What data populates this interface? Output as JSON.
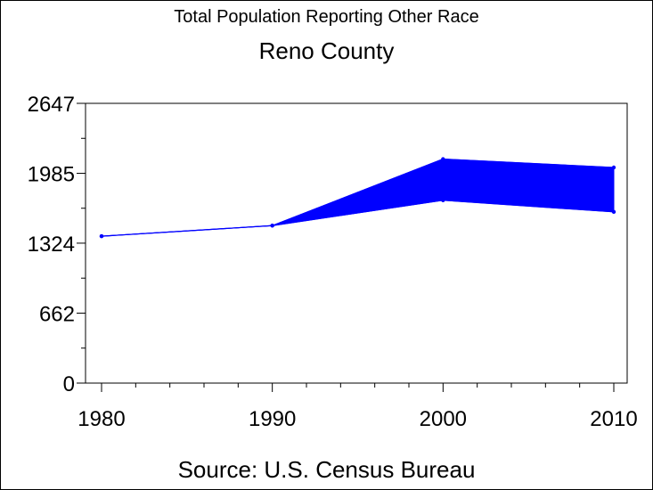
{
  "chart_data": {
    "type": "area",
    "title": "Total Population Reporting Other Race",
    "subtitle": "Reno County",
    "source": "Source: U.S. Census Bureau",
    "x": [
      1980,
      1990,
      2000,
      2010
    ],
    "x_tick_labels": [
      "1980",
      "1990",
      "2000",
      "2010"
    ],
    "y_tick_labels": [
      "0",
      "662",
      "1324",
      "1985",
      "2647"
    ],
    "xlim": [
      1980,
      2010
    ],
    "ylim": [
      0,
      2647
    ],
    "y_ticks": [
      0,
      662,
      1324,
      1985,
      2647
    ],
    "series": [
      {
        "values": [
          1390,
          1490,
          1730,
          1620
        ]
      },
      {
        "values": [
          1390,
          1490,
          2120,
          2040
        ]
      }
    ],
    "grid": false,
    "color": "#0000ff"
  }
}
